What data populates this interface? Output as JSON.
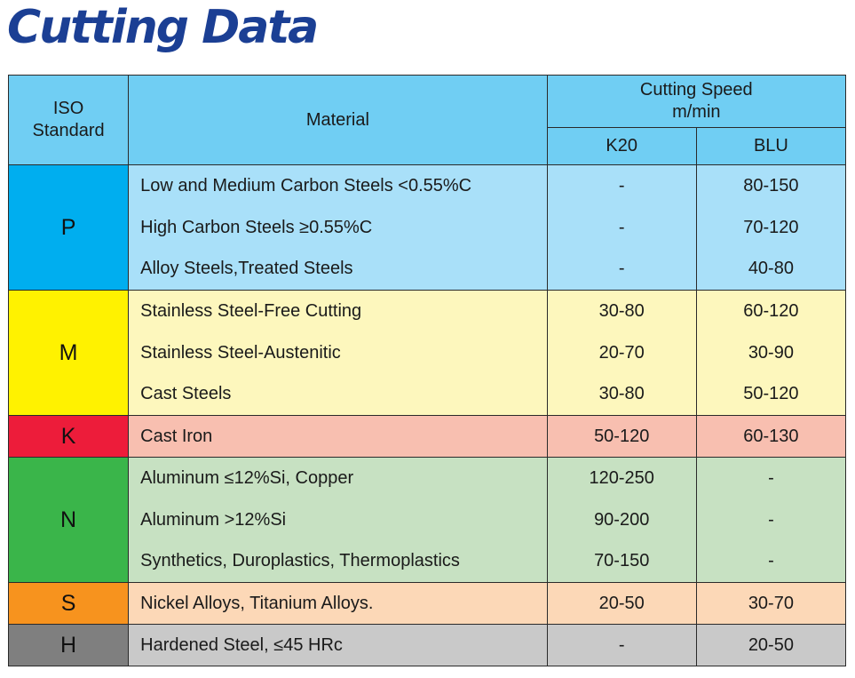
{
  "title": "Cutting Data",
  "header": {
    "iso": "ISO\nStandard",
    "iso_line1": "ISO",
    "iso_line2": "Standard",
    "material": "Material",
    "speed_line1": "Cutting Speed",
    "speed_line2": "m/min",
    "k20": "K20",
    "blu": "BLU"
  },
  "groups": [
    {
      "code": "P",
      "code_color": "#00aeef",
      "row_color": "#a9e0f9",
      "rows": [
        {
          "material": "Low and Medium Carbon Steels <0.55%C",
          "k20": "-",
          "blu": "80-150"
        },
        {
          "material": "High Carbon Steels ≥0.55%C",
          "k20": "-",
          "blu": "70-120"
        },
        {
          "material": "Alloy Steels,Treated Steels",
          "k20": "-",
          "blu": "40-80"
        }
      ]
    },
    {
      "code": "M",
      "code_color": "#fff200",
      "row_color": "#fdf7bd",
      "rows": [
        {
          "material": "Stainless Steel-Free Cutting",
          "k20": "30-80",
          "blu": "60-120"
        },
        {
          "material": "Stainless Steel-Austenitic",
          "k20": "20-70",
          "blu": "30-90"
        },
        {
          "material": "Cast Steels",
          "k20": "30-80",
          "blu": "50-120"
        }
      ]
    },
    {
      "code": "K",
      "code_color": "#ed1c3a",
      "row_color": "#f8bfb0",
      "rows": [
        {
          "material": "Cast Iron",
          "k20": "50-120",
          "blu": "60-130"
        }
      ]
    },
    {
      "code": "N",
      "code_color": "#3ab54a",
      "row_color": "#c7e1c2",
      "rows": [
        {
          "material": "Aluminum ≤12%Si, Copper",
          "k20": "120-250",
          "blu": "-"
        },
        {
          "material": "Aluminum >12%Si",
          "k20": "90-200",
          "blu": "-"
        },
        {
          "material": "Synthetics, Duroplastics, Thermoplastics",
          "k20": "70-150",
          "blu": "-"
        }
      ]
    },
    {
      "code": "S",
      "code_color": "#f7931e",
      "row_color": "#fcd8b7",
      "rows": [
        {
          "material": "Nickel Alloys, Titanium Alloys.",
          "k20": "20-50",
          "blu": "30-70"
        }
      ]
    },
    {
      "code": "H",
      "code_color": "#7f7f7f",
      "row_color": "#c9c9c9",
      "rows": [
        {
          "material": "Hardened Steel, ≤45 HRc",
          "k20": "-",
          "blu": "20-50"
        }
      ]
    }
  ]
}
